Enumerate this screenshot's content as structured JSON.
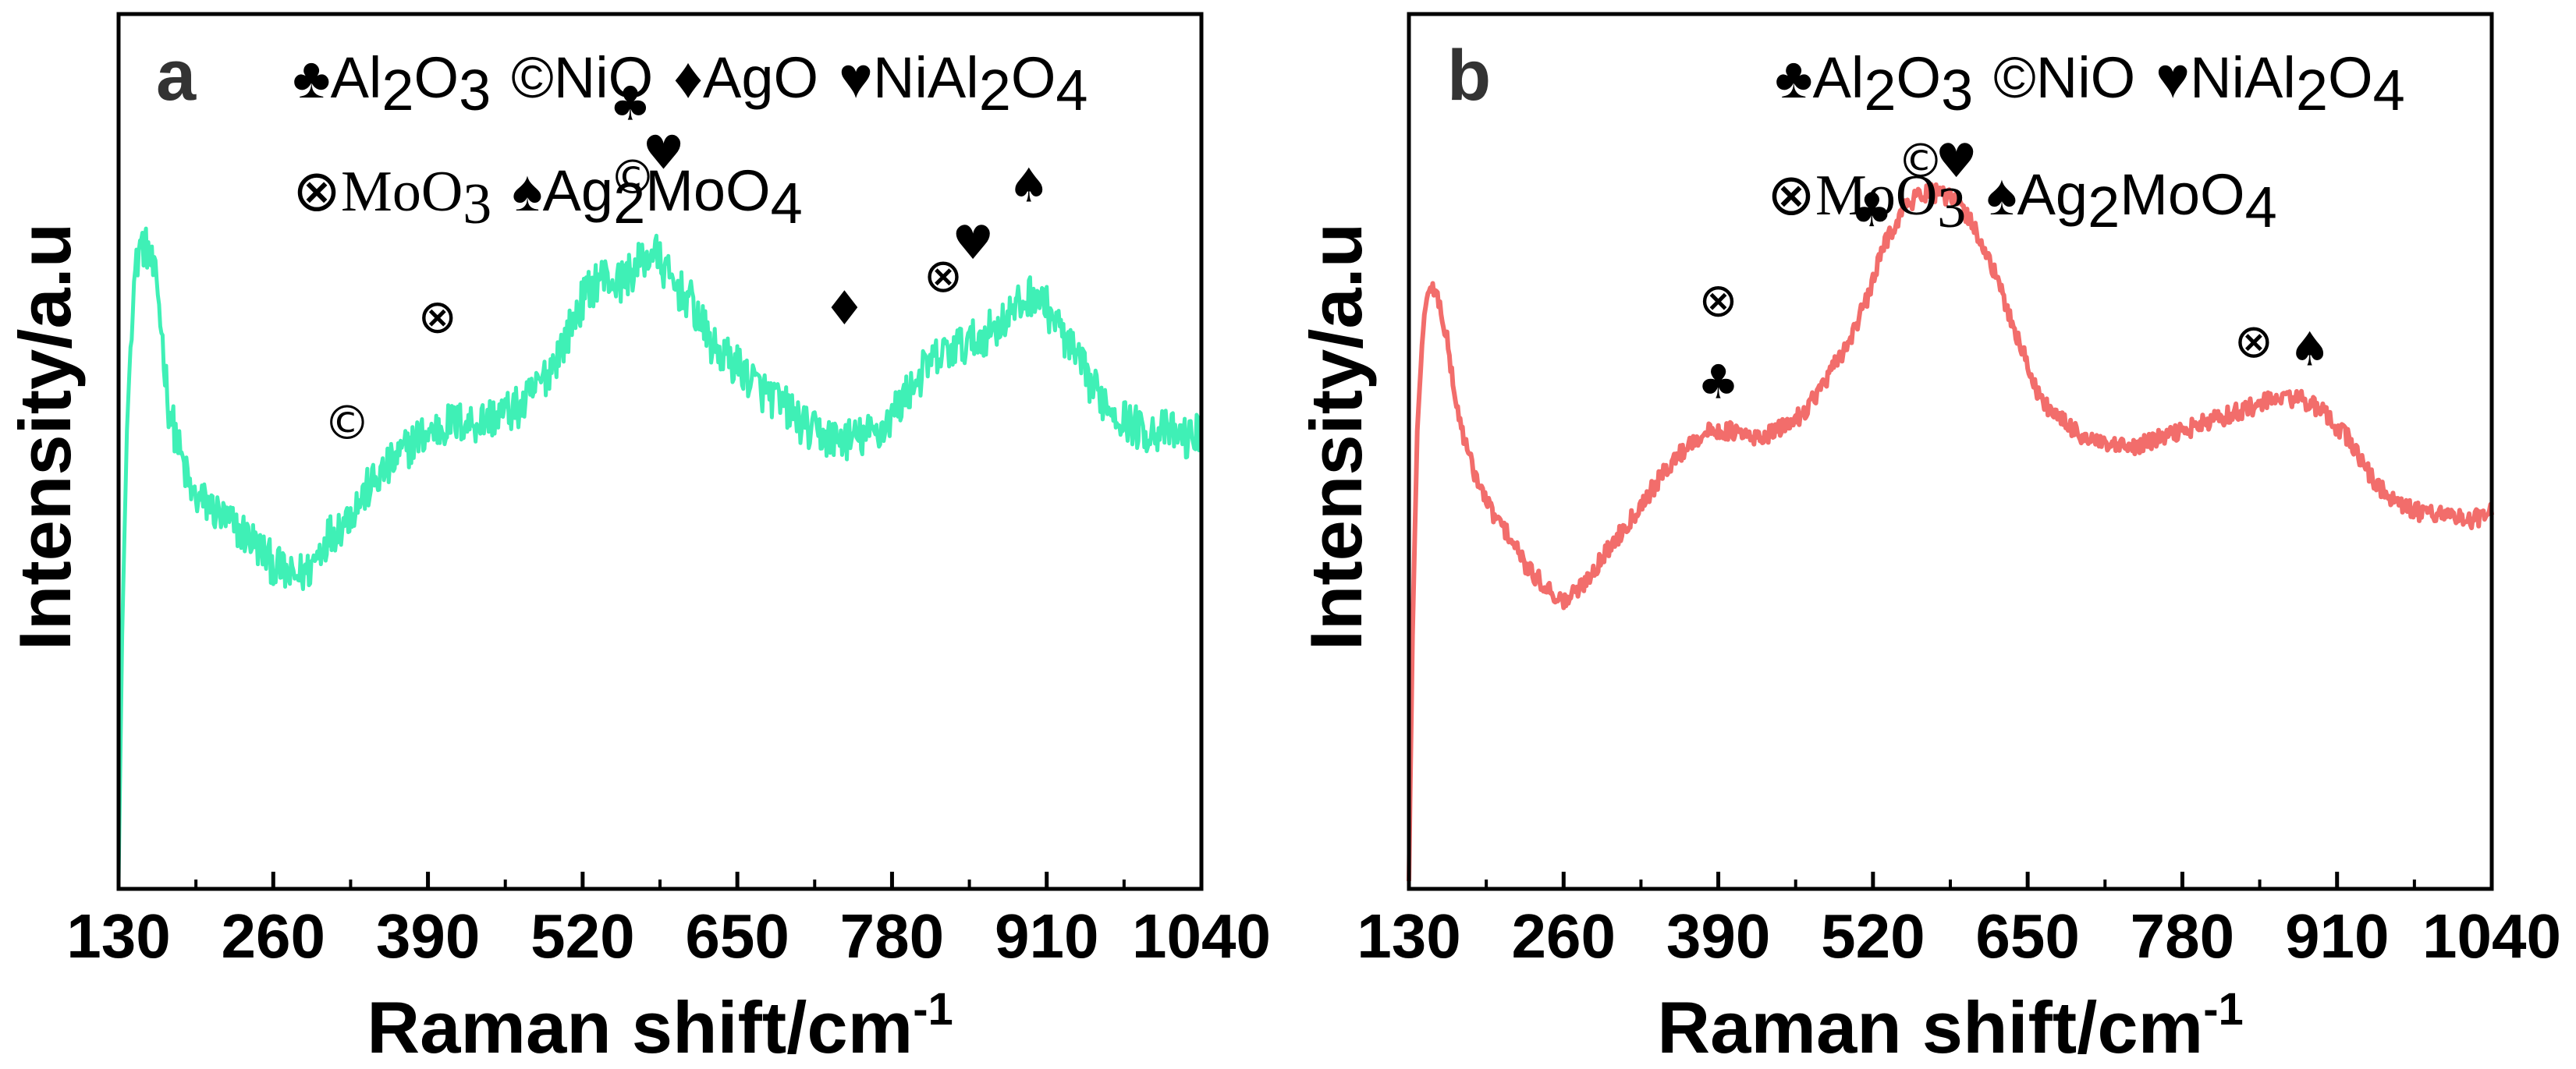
{
  "chart_data": [
    {
      "panel": "a",
      "type": "line",
      "color": "#3ff0b6",
      "xlabel": "Raman shift/cm",
      "xlabel_sup": "-1",
      "ylabel": "Intensity/a.u",
      "xlim": [
        130,
        1040
      ],
      "ylim": [
        0,
        100
      ],
      "xticks": [
        130,
        260,
        390,
        520,
        650,
        780,
        910,
        1040
      ],
      "legend_lines": [
        [
          {
            "sym": "♣",
            "parts": [
              [
                "Al",
                ""
              ],
              [
                "2",
                "sub"
              ],
              [
                "O",
                ""
              ],
              [
                "3",
                "sub"
              ]
            ]
          },
          {
            "sym": "©",
            "parts": [
              [
                "NiO",
                ""
              ]
            ]
          },
          {
            "sym": "♦",
            "parts": [
              [
                "AgO",
                ""
              ]
            ]
          },
          {
            "sym": "♥",
            "parts": [
              [
                "NiAl",
                ""
              ],
              [
                "2",
                "sub"
              ],
              [
                "O",
                ""
              ],
              [
                "4",
                "sub"
              ]
            ]
          }
        ],
        [
          {
            "sym": "⊗",
            "parts": [
              [
                "MoO",
                ""
              ],
              [
                "3",
                "sub"
              ]
            ],
            "serif": true
          },
          {
            "sym": "♠",
            "parts": [
              [
                "Ag",
                ""
              ],
              [
                "2",
                "sub"
              ],
              [
                "MoO",
                ""
              ],
              [
                "4",
                "sub"
              ]
            ]
          }
        ]
      ],
      "annotations": [
        {
          "x": 322,
          "y": 54,
          "text": "©"
        },
        {
          "x": 398,
          "y": 67,
          "text": "⊗"
        },
        {
          "x": 562,
          "y": 84,
          "text": "©"
        },
        {
          "x": 560,
          "y": 93,
          "text": "♣"
        },
        {
          "x": 588,
          "y": 87,
          "text": "♥"
        },
        {
          "x": 740,
          "y": 68,
          "text": "♦"
        },
        {
          "x": 823,
          "y": 72,
          "text": "⊗"
        },
        {
          "x": 848,
          "y": 76,
          "text": "♥"
        },
        {
          "x": 895,
          "y": 83,
          "text": "♠"
        }
      ],
      "x": [
        130,
        133,
        137,
        142,
        148,
        155,
        163,
        172,
        182,
        192,
        205,
        220,
        240,
        258,
        275,
        290,
        305,
        320,
        340,
        360,
        380,
        395,
        410,
        430,
        450,
        470,
        490,
        505,
        520,
        535,
        550,
        565,
        580,
        595,
        610,
        630,
        650,
        670,
        690,
        710,
        730,
        750,
        770,
        790,
        810,
        830,
        850,
        870,
        885,
        900,
        915,
        930,
        950,
        970,
        990,
        1010,
        1030,
        1040
      ],
      "y": [
        0,
        30,
        55,
        72,
        78,
        77,
        72,
        58,
        52,
        47,
        46,
        44,
        42,
        39,
        37,
        38,
        42,
        44,
        48,
        51,
        54,
        55,
        56,
        56,
        57,
        58,
        62,
        66,
        71,
        74,
        73,
        75,
        77,
        73,
        71,
        65,
        63,
        60,
        58,
        55,
        54,
        54,
        55,
        59,
        63,
        65,
        66,
        68,
        70,
        72,
        69,
        65,
        60,
        57,
        55,
        55,
        54,
        55
      ]
    },
    {
      "panel": "b",
      "type": "line",
      "color": "#f26d6b",
      "xlabel": "Raman shift/cm",
      "xlabel_sup": "-1",
      "ylabel": "Intensity/a.u",
      "xlim": [
        130,
        1040
      ],
      "ylim": [
        0,
        100
      ],
      "xticks": [
        130,
        260,
        390,
        520,
        650,
        780,
        910,
        1040
      ],
      "legend_lines": [
        [
          {
            "sym": "♣",
            "parts": [
              [
                "Al",
                ""
              ],
              [
                "2",
                "sub"
              ],
              [
                "O",
                ""
              ],
              [
                "3",
                "sub"
              ]
            ]
          },
          {
            "sym": "©",
            "parts": [
              [
                "NiO",
                ""
              ]
            ]
          },
          {
            "sym": "♥",
            "parts": [
              [
                "NiAl",
                ""
              ],
              [
                "2",
                "sub"
              ],
              [
                "O",
                ""
              ],
              [
                "4",
                "sub"
              ]
            ]
          }
        ],
        [
          {
            "sym": "⊗",
            "parts": [
              [
                "MoO",
                ""
              ],
              [
                "3",
                "sub"
              ]
            ],
            "serif": true
          },
          {
            "sym": "♠",
            "parts": [
              [
                "Ag",
                ""
              ],
              [
                "2",
                "sub"
              ],
              [
                "MoO",
                ""
              ],
              [
                "4",
                "sub"
              ]
            ]
          }
        ]
      ],
      "annotations": [
        {
          "x": 390,
          "y": 69,
          "text": "⊗"
        },
        {
          "x": 390,
          "y": 59,
          "text": "♣"
        },
        {
          "x": 519,
          "y": 80,
          "text": "♣"
        },
        {
          "x": 560,
          "y": 86,
          "text": "©"
        },
        {
          "x": 590,
          "y": 86,
          "text": "♥"
        },
        {
          "x": 840,
          "y": 64,
          "text": "⊗"
        },
        {
          "x": 887,
          "y": 63,
          "text": "♠"
        }
      ],
      "x": [
        130,
        133,
        137,
        142,
        148,
        155,
        162,
        170,
        180,
        190,
        200,
        215,
        230,
        245,
        260,
        275,
        290,
        310,
        330,
        350,
        370,
        385,
        400,
        420,
        440,
        460,
        480,
        500,
        515,
        530,
        545,
        560,
        575,
        590,
        605,
        620,
        640,
        660,
        680,
        700,
        720,
        740,
        760,
        780,
        800,
        820,
        840,
        860,
        880,
        900,
        920,
        940,
        960,
        980,
        1000,
        1020,
        1040
      ],
      "y": [
        0,
        30,
        55,
        68,
        73,
        71,
        66,
        58,
        52,
        48,
        45,
        42,
        38,
        36,
        34,
        36,
        39,
        43,
        47,
        51,
        54,
        55,
        55,
        54,
        55,
        57,
        61,
        66,
        71,
        78,
        82,
        84,
        84,
        83,
        80,
        75,
        67,
        59,
        56,
        54,
        53,
        53,
        54,
        55,
        56,
        57,
        58,
        59,
        59,
        57,
        54,
        49,
        46,
        45,
        45,
        44,
        45
      ]
    }
  ]
}
